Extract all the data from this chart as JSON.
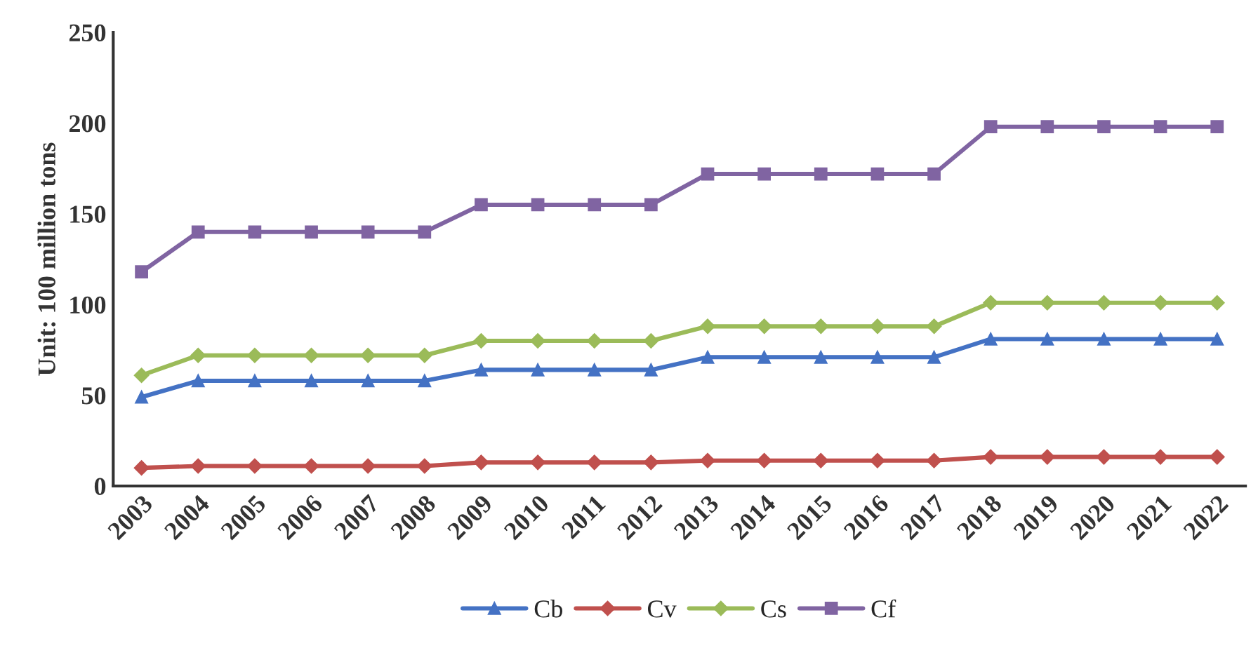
{
  "chart_data": {
    "type": "line",
    "ylabel": "Unit: 100 million tons",
    "categories": [
      "2003",
      "2004",
      "2005",
      "2006",
      "2007",
      "2008",
      "2009",
      "2010",
      "2011",
      "2012",
      "2013",
      "2014",
      "2015",
      "2016",
      "2017",
      "2018",
      "2019",
      "2020",
      "2021",
      "2022"
    ],
    "series": [
      {
        "name": "Cb",
        "color": "#4472c4",
        "marker": "triangle",
        "values": [
          49,
          58,
          58,
          58,
          58,
          58,
          64,
          64,
          64,
          64,
          71,
          71,
          71,
          71,
          71,
          81,
          81,
          81,
          81,
          81
        ]
      },
      {
        "name": "Cv",
        "color": "#c0504d",
        "marker": "diamond",
        "values": [
          10,
          11,
          11,
          11,
          11,
          11,
          13,
          13,
          13,
          13,
          14,
          14,
          14,
          14,
          14,
          16,
          16,
          16,
          16,
          16
        ]
      },
      {
        "name": "Cs",
        "color": "#9bbb59",
        "marker": "diamond",
        "values": [
          61,
          72,
          72,
          72,
          72,
          72,
          80,
          80,
          80,
          80,
          88,
          88,
          88,
          88,
          88,
          101,
          101,
          101,
          101,
          101
        ]
      },
      {
        "name": "Cf",
        "color": "#8064a2",
        "marker": "square",
        "values": [
          118,
          140,
          140,
          140,
          140,
          140,
          155,
          155,
          155,
          155,
          172,
          172,
          172,
          172,
          172,
          198,
          198,
          198,
          198,
          198
        ]
      }
    ],
    "ylim": [
      0,
      250
    ],
    "yticks": [
      0,
      50,
      100,
      150,
      200,
      250
    ],
    "grid": false,
    "legend": "bottom",
    "line_style": "solid"
  }
}
